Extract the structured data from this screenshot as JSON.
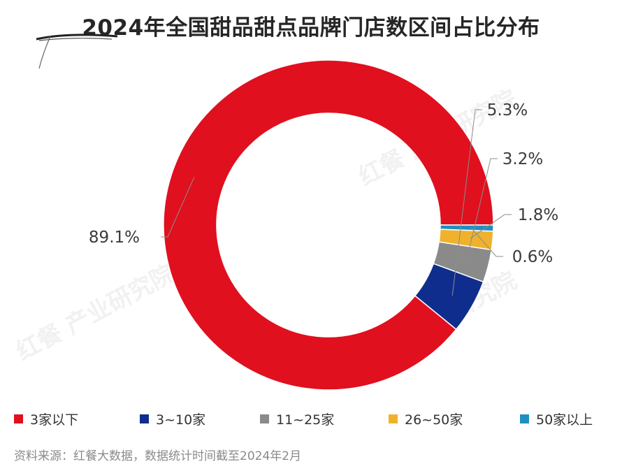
{
  "title": "2024年全国甜品甜点品牌门店数区间占比分布",
  "source": "资料来源：红餐大数据，数据统计时间截至2024年2月",
  "watermark": "红餐 产业研究院",
  "chart_data": {
    "type": "pie",
    "variant": "donut",
    "title": "2024年全国甜品甜点品牌门店数区间占比分布",
    "legend_position": "bottom",
    "categories": [
      "3家以下",
      "3~10家",
      "11~25家",
      "26~50家",
      "50家以上"
    ],
    "values": [
      89.1,
      5.3,
      3.2,
      1.8,
      0.6
    ],
    "labels": [
      "89.1%",
      "5.3%",
      "3.2%",
      "1.8%",
      "0.6%"
    ],
    "colors": [
      "#e0101e",
      "#0f2d8c",
      "#8a8a8a",
      "#f0b12c",
      "#1e90c0"
    ]
  }
}
